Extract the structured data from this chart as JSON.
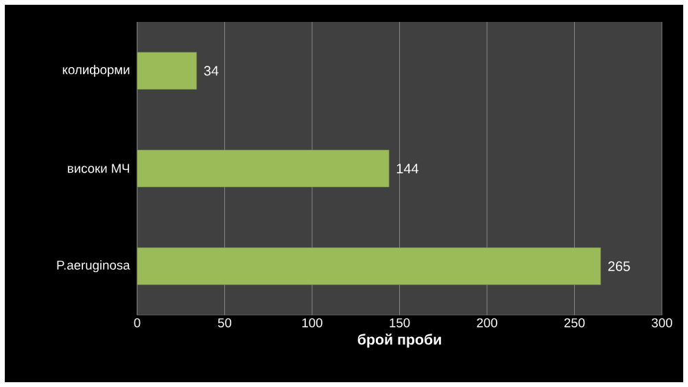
{
  "chart_data": {
    "type": "bar",
    "orientation": "horizontal",
    "xlabel": "брой проби",
    "categories": [
      "колиформи",
      "високи МЧ",
      "P.aeruginosa"
    ],
    "values": [
      34,
      144,
      265
    ],
    "color": "#9bbb59",
    "xlim": [
      0,
      300
    ],
    "xticks": [
      0,
      50,
      100,
      150,
      200,
      250,
      300
    ],
    "grid": "x",
    "data_labels": true
  }
}
